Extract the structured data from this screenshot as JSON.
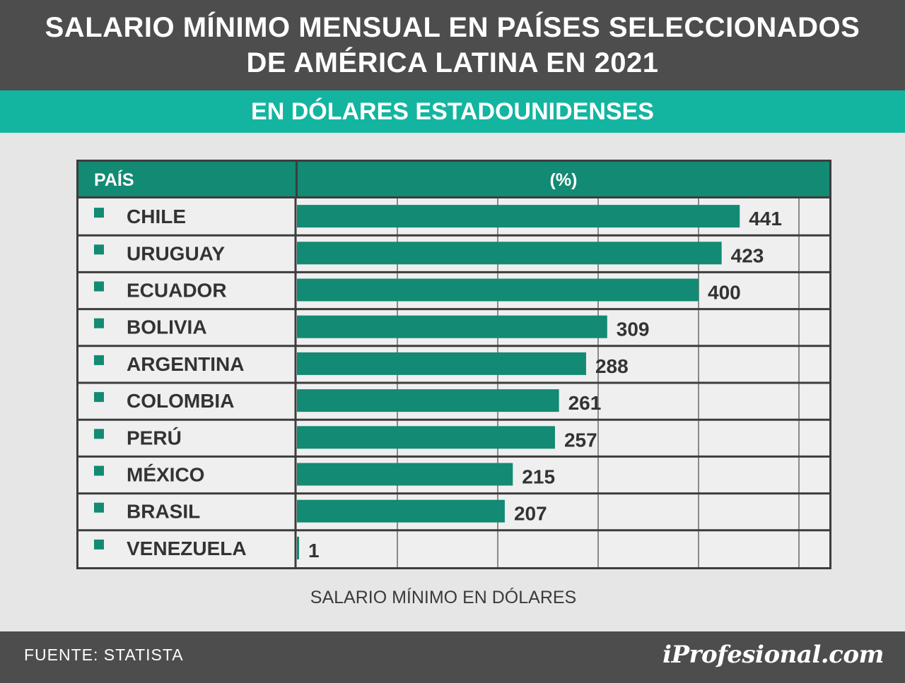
{
  "header": {
    "title_line1": "SALARIO MÍNIMO MENSUAL EN PAÍSES SELECCIONADOS",
    "title_line2": "DE AMÉRICA LATINA EN 2021",
    "subtitle": "EN DÓLARES ESTADOUNIDENSES"
  },
  "table": {
    "col_country": "PAÍS",
    "col_value": "(%)"
  },
  "footer": {
    "source": "FUENTE:  STATISTA",
    "logo": "iProfesional.com"
  },
  "colors": {
    "header_bg": "#4d4d4d",
    "subheader_bg": "#13b5a0",
    "bar": "#138a73",
    "grid": "#3d3d3d"
  },
  "chart_data": {
    "type": "bar",
    "orientation": "horizontal",
    "title": "SALARIO MÍNIMO MENSUAL EN PAÍSES SELECCIONADOS DE AMÉRICA LATINA EN 2021",
    "subtitle": "EN DÓLARES ESTADOUNIDENSES",
    "xlabel": "SALARIO MÍNIMO EN DÓLARES",
    "categories": [
      "CHILE",
      "URUGUAY",
      "ECUADOR",
      "BOLIVIA",
      "ARGENTINA",
      "COLOMBIA",
      "PERÚ",
      "MÉXICO",
      "BRASIL",
      "VENEZUELA"
    ],
    "values": [
      441,
      423,
      400,
      309,
      288,
      261,
      257,
      215,
      207,
      1
    ],
    "xlim": [
      0,
      500
    ],
    "grid": true
  }
}
